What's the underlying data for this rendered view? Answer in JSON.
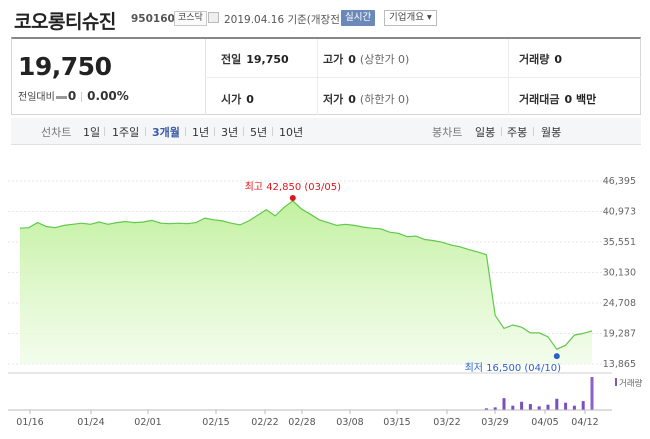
{
  "header": {
    "name": "코오롱티슈진",
    "code": "950160",
    "market": "코스닥",
    "date": "2019.04.16 기준(개장전)",
    "live_button": "실시간",
    "info_button": "기업개요 ▾"
  },
  "price": {
    "current": "19,750",
    "change_label": "전일대비",
    "change_value": "0",
    "change_pct": "0.00%"
  },
  "stats": {
    "prev_close_label": "전일",
    "prev_close": "19,750",
    "high_label": "고가",
    "high": "0",
    "high_sub": "(상한가 0)",
    "volume_label": "거래량",
    "volume": "0",
    "open_label": "시가",
    "open": "0",
    "low_label": "저가",
    "low": "0",
    "low_sub": "(하한가 0)",
    "amount_label": "거래대금",
    "amount": "0 백만"
  },
  "tabs": {
    "line_label": "선차트",
    "line_periods": [
      "1일",
      "1주일",
      "3개월",
      "1년",
      "3년",
      "5년",
      "10년"
    ],
    "active_period": "3개월",
    "candle_label": "봉차트",
    "candle_periods": [
      "일봉",
      "주봉",
      "월봉"
    ]
  },
  "chart_data": {
    "type": "area",
    "y_ticks": [
      "46,395",
      "40,973",
      "35,551",
      "30,130",
      "24,708",
      "19,287",
      "13,865"
    ],
    "ylim": [
      13865,
      46395
    ],
    "x_ticks": [
      "01/16",
      "01/24",
      "02/01",
      "02/15",
      "02/22",
      "02/28",
      "03/08",
      "03/15",
      "03/22",
      "03/29",
      "04/05",
      "04/12"
    ],
    "values": [
      38000,
      38100,
      39000,
      38300,
      38100,
      38500,
      38700,
      38900,
      38700,
      39100,
      38700,
      39000,
      39200,
      39000,
      39100,
      39400,
      38900,
      38800,
      38900,
      38800,
      39000,
      39800,
      39500,
      39300,
      38900,
      38600,
      39300,
      40300,
      41300,
      40200,
      41700,
      42850,
      41400,
      40500,
      39500,
      39000,
      38500,
      38700,
      38500,
      38200,
      38000,
      37900,
      37300,
      37100,
      36500,
      36600,
      36000,
      35800,
      35500,
      35000,
      34700,
      34200,
      33800,
      33300,
      22500,
      20200,
      20800,
      20400,
      19400,
      19400,
      18700,
      16500,
      17200,
      19000,
      19300,
      19750
    ],
    "max_label": "최고 42,850 (03/05)",
    "min_label": "최저 16,500 (04/10)",
    "volume_label": "거래량",
    "volumes": [
      0,
      0,
      0,
      0,
      0,
      0,
      0,
      0,
      0,
      0,
      0,
      0,
      0,
      0,
      0,
      0,
      0,
      0,
      0,
      0,
      0,
      0,
      0,
      0,
      0,
      0,
      0,
      0,
      0,
      0,
      0,
      0,
      0,
      0,
      0,
      0,
      0,
      0,
      0,
      0,
      0,
      0,
      0,
      0,
      0,
      0,
      0,
      0,
      0,
      0,
      0,
      0,
      0,
      5,
      8,
      36,
      13,
      25,
      18,
      11,
      16,
      34,
      22,
      13,
      27,
      100
    ]
  }
}
